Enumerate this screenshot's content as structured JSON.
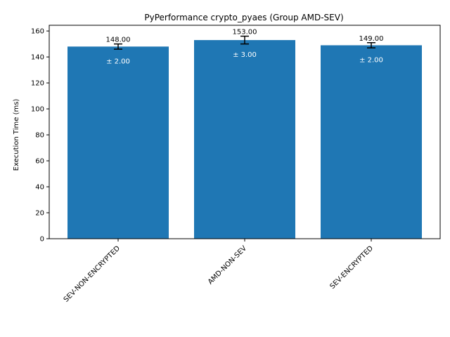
{
  "chart_data": {
    "type": "bar",
    "title": "PyPerformance crypto_pyaes (Group AMD-SEV)",
    "xlabel": "",
    "ylabel": "Execution Time (ms)",
    "categories": [
      "SEV-NON-ENCRYPTED",
      "AMD-NON-SEV",
      "SEV-ENCRYPTED"
    ],
    "values": [
      148.0,
      153.0,
      149.0
    ],
    "errors": [
      2.0,
      3.0,
      2.0
    ],
    "value_labels": [
      "148.00",
      "153.00",
      "149.00"
    ],
    "error_labels": [
      "± 2.00",
      "± 3.00",
      "± 2.00"
    ],
    "ylim": [
      0,
      164.4
    ],
    "yticks": [
      0,
      20,
      40,
      60,
      80,
      100,
      120,
      140,
      160
    ],
    "ytick_labels": [
      "0",
      "20",
      "40",
      "60",
      "80",
      "100",
      "120",
      "140",
      "160"
    ],
    "grid": false,
    "bar_color": "#1f77b4",
    "error_bar_color": "#000000"
  }
}
